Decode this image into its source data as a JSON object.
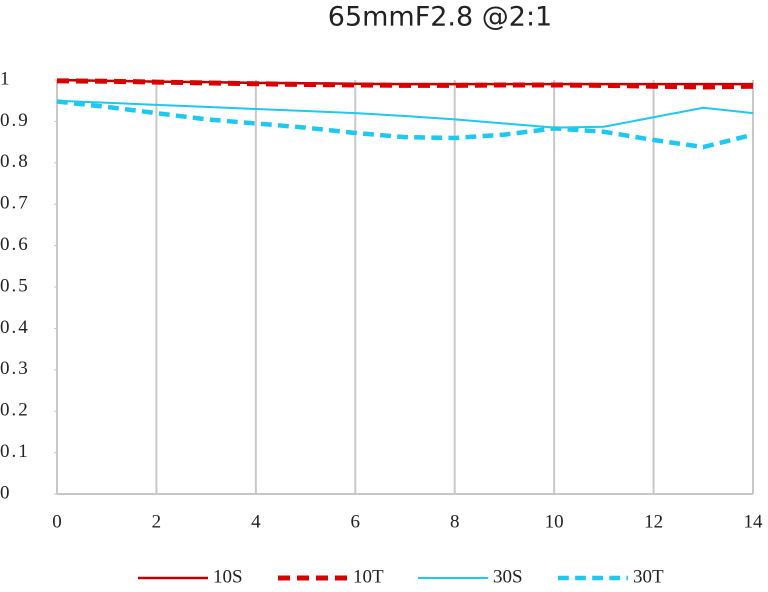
{
  "chart_data": {
    "type": "line",
    "title": "65mmF2.8 @2:1",
    "x": [
      0,
      1,
      2,
      3,
      4,
      5,
      6,
      7,
      8,
      9,
      10,
      11,
      12,
      13,
      14
    ],
    "series": [
      {
        "name": "10S",
        "color": "#c00000",
        "dashed": false,
        "width": 2.5,
        "values": [
          1.0,
          0.998,
          0.996,
          0.995,
          0.993,
          0.992,
          0.991,
          0.99,
          0.99,
          0.99,
          0.99,
          0.99,
          0.99,
          0.99,
          0.99
        ]
      },
      {
        "name": "10T",
        "color": "#d80000",
        "dashed": true,
        "width": 5,
        "values": [
          0.998,
          0.997,
          0.995,
          0.993,
          0.991,
          0.989,
          0.988,
          0.987,
          0.987,
          0.988,
          0.988,
          0.987,
          0.985,
          0.983,
          0.985
        ]
      },
      {
        "name": "30S",
        "color": "#1ec8f0",
        "dashed": false,
        "width": 2,
        "values": [
          0.95,
          0.945,
          0.94,
          0.935,
          0.93,
          0.925,
          0.92,
          0.913,
          0.905,
          0.895,
          0.885,
          0.887,
          0.91,
          0.933,
          0.92
        ]
      },
      {
        "name": "30T",
        "color": "#1ec8f0",
        "dashed": true,
        "width": 4.5,
        "values": [
          0.948,
          0.935,
          0.92,
          0.905,
          0.895,
          0.885,
          0.872,
          0.862,
          0.86,
          0.868,
          0.883,
          0.875,
          0.855,
          0.838,
          0.868
        ]
      }
    ],
    "xlim": [
      0,
      14
    ],
    "xticks": [
      0,
      2,
      4,
      6,
      8,
      10,
      12,
      14
    ],
    "ylim": [
      0,
      1
    ],
    "yticks": [
      0,
      0.1,
      0.2,
      0.3,
      0.4,
      0.5,
      0.6,
      0.7,
      0.8,
      0.9,
      1
    ],
    "grid": "x",
    "legend": "bottom"
  }
}
